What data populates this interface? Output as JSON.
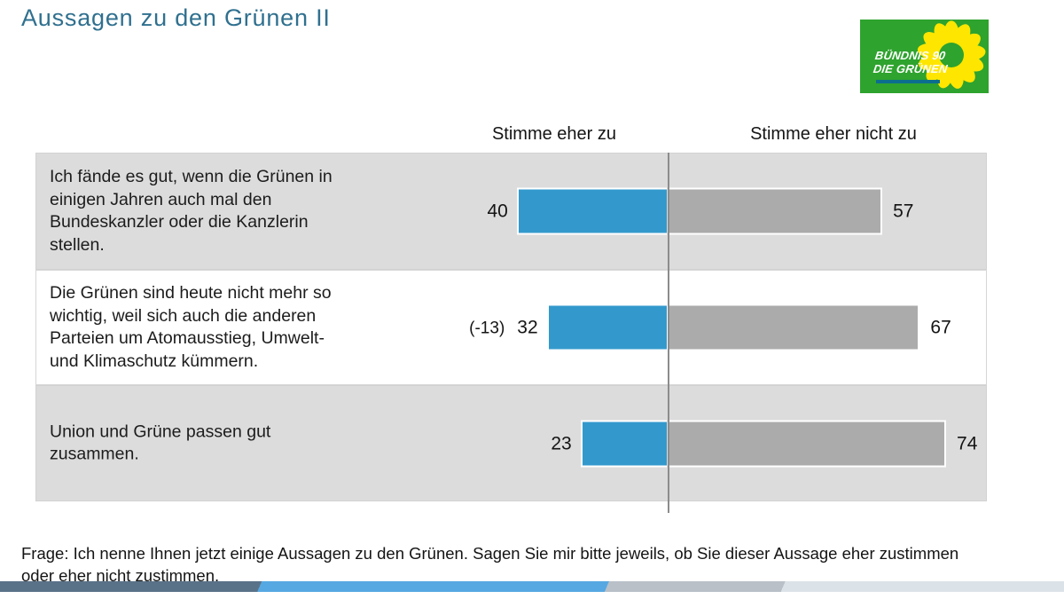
{
  "title": "Aussagen zu den Grünen II",
  "logo": {
    "line1": "BÜNDNIS 90",
    "line2": "DIE GRÜNEN",
    "green": "#2ea32e",
    "yellow": "#ffe600",
    "underline_color": "#0b6e8e"
  },
  "chart_data": {
    "type": "bar",
    "title": "Aussagen zu den Grünen II",
    "orientation": "horizontal-diverging",
    "legend": [
      "Stimme eher zu",
      "Stimme eher nicht zu"
    ],
    "legend_position": "top",
    "axis_max": 100,
    "grid": false,
    "colors": {
      "agree": "#3399cc",
      "disagree": "#ababab"
    },
    "rows": [
      {
        "statement": "Ich fände es gut, wenn die Grünen in\neinigen Jahren auch mal den\nBundeskanzler oder die Kanzlerin\nstellen.",
        "agree": 40,
        "disagree": 57,
        "change": ""
      },
      {
        "statement": "Die Grünen sind heute nicht mehr so\nwichtig, weil sich auch die anderen\nParteien um Atomausstieg, Umwelt-\nund Klimaschutz kümmern.",
        "agree": 32,
        "disagree": 67,
        "change": "(-13)"
      },
      {
        "statement": "Union und Grüne passen gut\nzusammen.",
        "agree": 23,
        "disagree": 74,
        "change": ""
      }
    ]
  },
  "footer": {
    "question": "Frage: Ich nenne Ihnen jetzt einige Aussagen zu den Grünen. Sagen Sie mir bitte jeweils, ob Sie dieser Aussage eher zustimmen\noder eher nicht zustimmen."
  }
}
